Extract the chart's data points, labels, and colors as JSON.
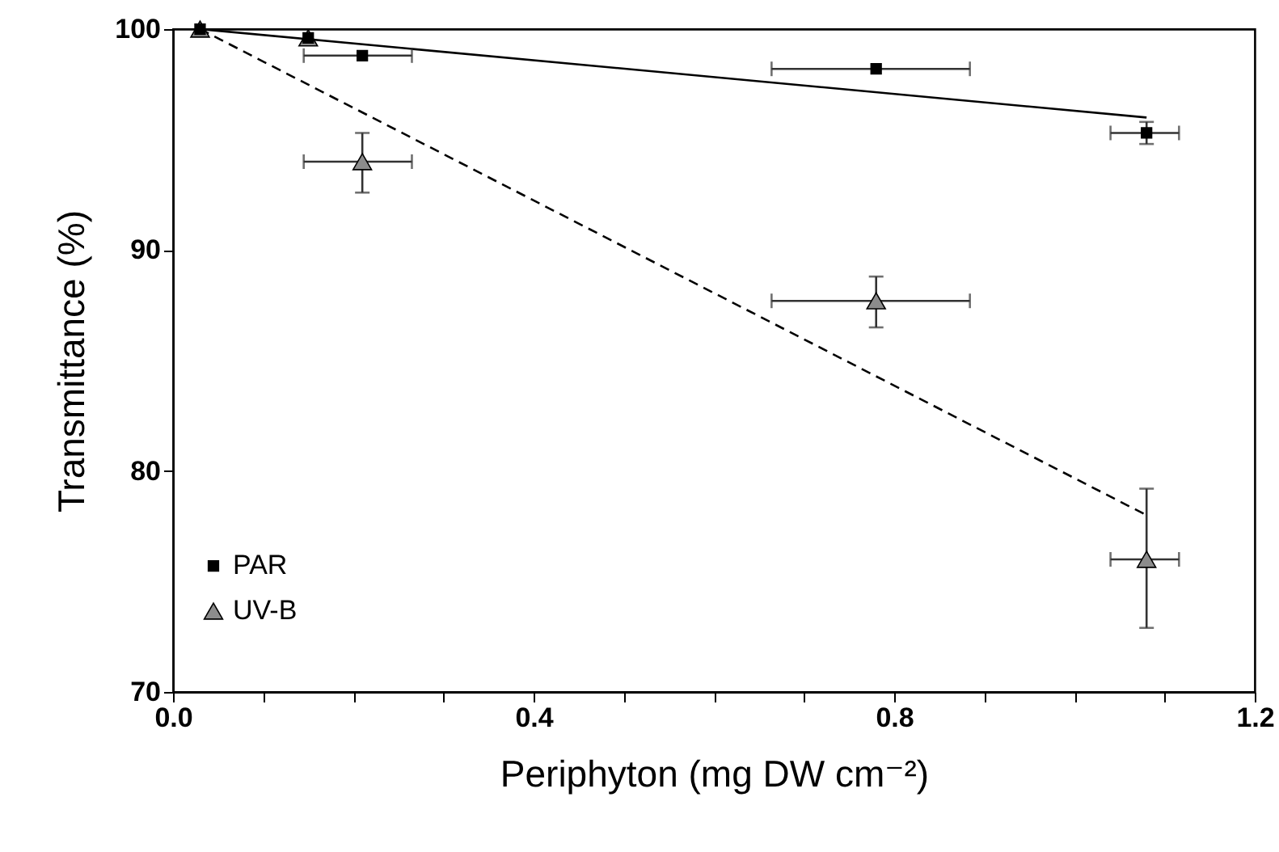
{
  "chart_data": {
    "type": "scatter",
    "xlabel": "Periphyton (mg DW cm⁻²)",
    "ylabel": "Transmittance (%)",
    "xlim": [
      0,
      1.2
    ],
    "ylim": [
      70,
      100
    ],
    "xticks": [
      {
        "value": 0,
        "label": "0.0"
      },
      {
        "value": 0.1,
        "label": null
      },
      {
        "value": 0.2,
        "label": null
      },
      {
        "value": 0.3,
        "label": null
      },
      {
        "value": 0.4,
        "label": "0.4"
      },
      {
        "value": 0.5,
        "label": null
      },
      {
        "value": 0.6,
        "label": null
      },
      {
        "value": 0.7,
        "label": null
      },
      {
        "value": 0.8,
        "label": "0.8"
      },
      {
        "value": 0.9,
        "label": null
      },
      {
        "value": 1.0,
        "label": null
      },
      {
        "value": 1.1,
        "label": null
      },
      {
        "value": 1.2,
        "label": "1.2"
      }
    ],
    "yticks": [
      70,
      80,
      90,
      100
    ],
    "grid": false,
    "legend": "bottom left",
    "series": [
      {
        "name": "PAR",
        "marker": "square",
        "color": "#000000",
        "x": [
          0.03,
          0.15,
          0.21,
          0.78,
          1.08
        ],
        "values": [
          100,
          99.6,
          98.8,
          98.2,
          95.3
        ],
        "errors": [
          null,
          null,
          null,
          null,
          0.5
        ],
        "xerrors": [
          null,
          null,
          [
            0.145,
            0.265
          ],
          [
            0.664,
            0.884
          ],
          [
            1.04,
            1.116
          ]
        ]
      },
      {
        "name": "UV-B",
        "marker": "triangle",
        "color": "#8c8c8c",
        "x": [
          0.03,
          0.15,
          0.21,
          0.78,
          1.08
        ],
        "values": [
          100,
          99.6,
          94.0,
          87.7,
          76.0
        ],
        "errors": [
          null,
          null,
          [
            92.6,
            95.3
          ],
          [
            86.5,
            88.8
          ],
          [
            72.9,
            79.2
          ]
        ],
        "xerrors": [
          null,
          null,
          [
            0.145,
            0.265
          ],
          [
            0.664,
            0.884
          ],
          [
            1.04,
            1.116
          ]
        ]
      },
      {
        "type": "line",
        "line_style": "solid",
        "color": "#000000",
        "x": [
          0.03,
          1.08
        ],
        "values": [
          100,
          96.0
        ]
      },
      {
        "type": "line",
        "line_style": "dashed",
        "color": "#000000",
        "x": [
          0.03,
          1.08
        ],
        "values": [
          100,
          78.0
        ]
      }
    ]
  }
}
